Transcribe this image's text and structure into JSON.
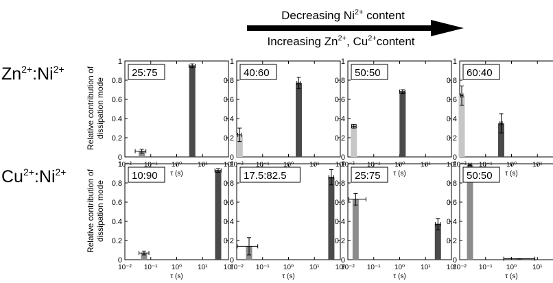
{
  "header": {
    "top_line": {
      "pre": "Decreasing Ni",
      "sup": "2+",
      "post": " content"
    },
    "bottom_line": {
      "p1": "Increasing Zn",
      "s1": "2+",
      "p2": ", Cu",
      "s2": "2+",
      "p3": "content"
    }
  },
  "rows": [
    {
      "label": {
        "a": "Zn",
        "as": "2+",
        "mid": ":Ni",
        "bs": "2+"
      }
    },
    {
      "label": {
        "a": "Cu",
        "as": "2+",
        "mid": ":Ni",
        "bs": "2+"
      }
    }
  ],
  "ylabel": [
    "Relative contribution of",
    "dissipation mode"
  ],
  "xlabel": "τ (s)",
  "colors": {
    "light": "#c6c6c6",
    "mid": "#8c8c8c",
    "dark": "#4a4a4a"
  },
  "chart_data": [
    {
      "type": "bar",
      "title": "25:75",
      "xscale": "log",
      "xlim": [
        0.01,
        100
      ],
      "ylim": [
        0,
        1
      ],
      "yticks": [
        "0",
        "0.2",
        "0.4",
        "0.6",
        "0.8",
        "1"
      ],
      "xticks": [
        "10⁻²",
        "10⁻¹",
        "10⁰",
        "10¹",
        "10²"
      ],
      "bars": [
        {
          "tau": 0.045,
          "value": 0.06,
          "yerr": 0.02,
          "xerr": [
            0.025,
            0.065
          ],
          "shade": "mid"
        },
        {
          "tau": 4,
          "value": 0.95,
          "yerr": 0.02,
          "xerr": [
            3,
            5.2
          ],
          "shade": "dark"
        }
      ]
    },
    {
      "type": "bar",
      "title": "40:60",
      "xscale": "log",
      "xlim": [
        0.01,
        100
      ],
      "ylim": [
        0,
        1
      ],
      "yticks": [
        "0",
        "0.2",
        "0.4",
        "0.6",
        "0.8",
        "1"
      ],
      "xticks": [
        "10⁻²",
        "10⁻¹",
        "10⁰",
        "10¹",
        "10²"
      ],
      "bars": [
        {
          "tau": 0.013,
          "value": 0.23,
          "yerr": 0.07,
          "xerr": [
            0.011,
            0.015
          ],
          "shade": "light"
        },
        {
          "tau": 2.5,
          "value": 0.77,
          "yerr": 0.06,
          "xerr": [
            2.1,
            2.9
          ],
          "shade": "dark"
        }
      ]
    },
    {
      "type": "bar",
      "title": "50:50",
      "xscale": "log",
      "xlim": [
        0.01,
        100
      ],
      "ylim": [
        0,
        1
      ],
      "yticks": [
        "0",
        "0.2",
        "0.4",
        "0.6",
        "0.8",
        "1"
      ],
      "xticks": [
        "10⁻²",
        "10⁻¹",
        "10⁰",
        "10¹",
        "10²"
      ],
      "bars": [
        {
          "tau": 0.017,
          "value": 0.32,
          "yerr": 0.02,
          "xerr": [
            0.014,
            0.021
          ],
          "shade": "light"
        },
        {
          "tau": 1.3,
          "value": 0.68,
          "yerr": 0.02,
          "xerr": [
            1.0,
            1.6
          ],
          "shade": "dark"
        }
      ]
    },
    {
      "type": "bar",
      "title": "60:40",
      "xscale": "log",
      "xlim": [
        0.01,
        100
      ],
      "ylim": [
        0,
        1
      ],
      "yticks": [
        "0",
        "0.2",
        "0.4",
        "0.6",
        "0.8",
        "1"
      ],
      "xticks": [
        "10⁻²",
        "10⁻¹",
        "10⁰",
        "10¹",
        "10²"
      ],
      "bars": [
        {
          "tau": 0.012,
          "value": 0.64,
          "yerr": 0.1,
          "xerr": [
            0.011,
            0.0135
          ],
          "shade": "light"
        },
        {
          "tau": 0.4,
          "value": 0.35,
          "yerr": 0.1,
          "xerr": [
            0.36,
            0.44
          ],
          "shade": "dark"
        }
      ]
    },
    {
      "type": "bar",
      "title": "10:90",
      "xscale": "log",
      "xlim": [
        0.01,
        100
      ],
      "ylim": [
        0,
        1
      ],
      "yticks": [
        "0",
        "0.2",
        "0.4",
        "0.6",
        "0.8",
        "1"
      ],
      "xticks": [
        "10⁻²",
        "10⁻¹",
        "10⁰",
        "10¹",
        "10²"
      ],
      "bars": [
        {
          "tau": 0.055,
          "value": 0.07,
          "yerr": 0.02,
          "xerr": [
            0.035,
            0.085
          ],
          "shade": "mid"
        },
        {
          "tau": 40,
          "value": 0.93,
          "yerr": 0.02,
          "xerr": [
            30,
            52
          ],
          "shade": "dark"
        }
      ]
    },
    {
      "type": "bar",
      "title": "17.5:82.5",
      "xscale": "log",
      "xlim": [
        0.01,
        100
      ],
      "ylim": [
        0,
        1
      ],
      "yticks": [
        "0",
        "0.2",
        "0.4",
        "0.6",
        "0.8",
        "1"
      ],
      "xticks": [
        "10⁻²",
        "10⁻¹",
        "10⁰",
        "10¹",
        "10²"
      ],
      "bars": [
        {
          "tau": 0.03,
          "value": 0.14,
          "yerr": 0.09,
          "xerr": [
            0.0105,
            0.065
          ],
          "shade": "mid"
        },
        {
          "tau": 45,
          "value": 0.86,
          "yerr": 0.08,
          "xerr": [
            36,
            56
          ],
          "shade": "dark"
        }
      ]
    },
    {
      "type": "bar",
      "title": "25:75",
      "xscale": "log",
      "xlim": [
        0.01,
        100
      ],
      "ylim": [
        0,
        1
      ],
      "yticks": [
        "0",
        "0.2",
        "0.4",
        "0.6",
        "0.8",
        "1"
      ],
      "xticks": [
        "10⁻²",
        "10⁻¹",
        "10⁰",
        "10¹",
        "10²"
      ],
      "bars": [
        {
          "tau": 0.02,
          "value": 0.63,
          "yerr": 0.06,
          "xerr": [
            0.011,
            0.05
          ],
          "shade": "mid"
        },
        {
          "tau": 30,
          "value": 0.37,
          "yerr": 0.06,
          "xerr": [
            24,
            38
          ],
          "shade": "dark"
        }
      ]
    },
    {
      "type": "bar",
      "title": "50:50",
      "xscale": "log",
      "xlim": [
        0.01,
        100
      ],
      "ylim": [
        0,
        1
      ],
      "yticks": [
        "0",
        "0.2",
        "0.4",
        "0.6",
        "0.8",
        "1"
      ],
      "xticks": [
        "10⁻²",
        "10⁻¹",
        "10⁰",
        "10¹",
        "10²"
      ],
      "bars": [
        {
          "tau": 0.025,
          "value": 0.99,
          "yerr": 0.01,
          "xerr": [
            0.022,
            0.028
          ],
          "shade": "mid"
        },
        {
          "tau": 2,
          "value": 0.01,
          "yerr": 0.0,
          "xerr": [
            0.5,
            8
          ],
          "shade": "dark"
        }
      ]
    }
  ]
}
